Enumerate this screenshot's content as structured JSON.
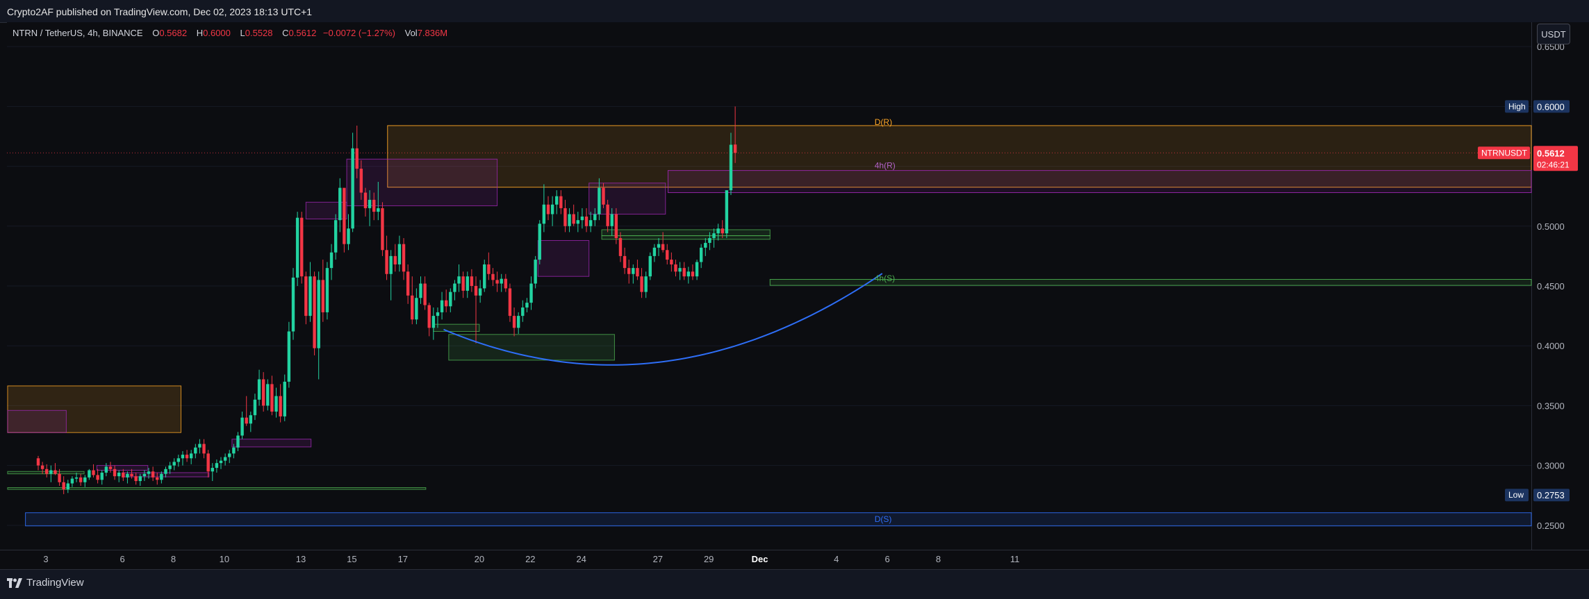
{
  "header": {
    "published_text": "Crypto2AF published on TradingView.com, Dec 02, 2023 18:13 UTC+1"
  },
  "legend": {
    "symbol": "NTRN / TetherUS, 4h, BINANCE",
    "open_label": "O",
    "open": "0.5682",
    "high_label": "H",
    "high": "0.6000",
    "low_label": "L",
    "low": "0.5528",
    "close_label": "C",
    "close": "0.5612",
    "change": "−0.0072 (−1.27%)",
    "vol_label": "Vol",
    "vol": "7.836M"
  },
  "currency_button": "USDT",
  "badges": {
    "high_label": "High",
    "high_value": "0.6000",
    "low_label": "Low",
    "low_value": "0.2753",
    "symbol_label": "NTRNUSDT",
    "last_price": "0.5612",
    "countdown": "02:46:21"
  },
  "zone_labels": {
    "d_resistance": "D(R)",
    "h4_resistance": "4h(R)",
    "h4_support": "4h(S)",
    "d_support": "D(S)"
  },
  "footer": {
    "brand": "TradingView"
  },
  "colors": {
    "up": "#22d3a1",
    "down": "#f23645",
    "curve": "#2e6ef7",
    "price_badge": "#f23645",
    "purple": "#9c27b0",
    "orange": "#ffa726",
    "green": "#4caf50"
  },
  "chart_data": {
    "type": "candlestick",
    "title": "NTRN / TetherUS, 4h, BINANCE",
    "x_ticks": [
      "3",
      "6",
      "8",
      "10",
      "13",
      "15",
      "17",
      "20",
      "22",
      "24",
      "27",
      "29",
      "Dec",
      "4",
      "6",
      "8",
      "11"
    ],
    "x_tick_day_index": [
      0,
      3,
      5,
      7,
      10,
      12,
      14,
      17,
      19,
      21,
      24,
      26,
      28,
      31,
      33,
      35,
      38
    ],
    "y_ticks": [
      "0.6500",
      "0.6000",
      "0.5500",
      "0.5000",
      "0.4500",
      "0.4000",
      "0.3500",
      "0.3000",
      "0.2500"
    ],
    "ylim": [
      0.2296,
      0.6704
    ],
    "high": 0.6,
    "low": 0.2753,
    "last_price": 0.5612,
    "zones": [
      {
        "name": "D(R)",
        "type": "resistance",
        "timeframe": "D",
        "from_day": 13.4,
        "to": "right",
        "top": 0.584,
        "bottom": 0.5325
      },
      {
        "name": "4h(R)",
        "type": "resistance",
        "timeframe": "4h",
        "from_day": 24.4,
        "to": "right",
        "top": 0.5465,
        "bottom": 0.528
      },
      {
        "name": "4h(S)",
        "type": "support",
        "timeframe": "4h",
        "from_day": 28.4,
        "to": "right",
        "top": 0.4555,
        "bottom": 0.4505
      },
      {
        "name": "D(S)",
        "type": "support",
        "timeframe": "D",
        "from_day": -0.8,
        "to": "right",
        "top": 0.2605,
        "bottom": 0.2495
      }
    ],
    "candles_4h": [
      [
        0.306,
        0.308,
        0.296,
        0.3
      ],
      [
        0.3,
        0.303,
        0.293,
        0.297
      ],
      [
        0.297,
        0.301,
        0.29,
        0.293
      ],
      [
        0.293,
        0.3,
        0.286,
        0.296
      ],
      [
        0.296,
        0.302,
        0.292,
        0.293
      ],
      [
        0.293,
        0.297,
        0.283,
        0.286
      ],
      [
        0.286,
        0.291,
        0.276,
        0.28
      ],
      [
        0.28,
        0.288,
        0.277,
        0.285
      ],
      [
        0.285,
        0.291,
        0.282,
        0.289
      ],
      [
        0.289,
        0.294,
        0.286,
        0.29
      ],
      [
        0.29,
        0.293,
        0.283,
        0.286
      ],
      [
        0.286,
        0.292,
        0.282,
        0.29
      ],
      [
        0.29,
        0.297,
        0.288,
        0.296
      ],
      [
        0.296,
        0.301,
        0.29,
        0.292
      ],
      [
        0.292,
        0.297,
        0.285,
        0.288
      ],
      [
        0.288,
        0.296,
        0.284,
        0.294
      ],
      [
        0.294,
        0.302,
        0.291,
        0.299
      ],
      [
        0.299,
        0.303,
        0.294,
        0.297
      ],
      [
        0.297,
        0.3,
        0.288,
        0.291
      ],
      [
        0.291,
        0.296,
        0.286,
        0.294
      ],
      [
        0.294,
        0.297,
        0.287,
        0.29
      ],
      [
        0.29,
        0.295,
        0.285,
        0.293
      ],
      [
        0.293,
        0.297,
        0.289,
        0.291
      ],
      [
        0.291,
        0.294,
        0.284,
        0.287
      ],
      [
        0.287,
        0.293,
        0.283,
        0.291
      ],
      [
        0.291,
        0.296,
        0.287,
        0.293
      ],
      [
        0.293,
        0.298,
        0.289,
        0.295
      ],
      [
        0.295,
        0.299,
        0.287,
        0.29
      ],
      [
        0.29,
        0.294,
        0.284,
        0.288
      ],
      [
        0.288,
        0.295,
        0.285,
        0.293
      ],
      [
        0.293,
        0.299,
        0.29,
        0.297
      ],
      [
        0.297,
        0.303,
        0.293,
        0.3
      ],
      [
        0.3,
        0.306,
        0.296,
        0.303
      ],
      [
        0.303,
        0.309,
        0.299,
        0.306
      ],
      [
        0.306,
        0.312,
        0.3,
        0.309
      ],
      [
        0.309,
        0.313,
        0.303,
        0.306
      ],
      [
        0.306,
        0.313,
        0.301,
        0.31
      ],
      [
        0.31,
        0.318,
        0.306,
        0.315
      ],
      [
        0.315,
        0.322,
        0.31,
        0.318
      ],
      [
        0.318,
        0.322,
        0.306,
        0.31
      ],
      [
        0.31,
        0.313,
        0.29,
        0.295
      ],
      [
        0.295,
        0.302,
        0.287,
        0.298
      ],
      [
        0.298,
        0.305,
        0.294,
        0.302
      ],
      [
        0.302,
        0.307,
        0.297,
        0.304
      ],
      [
        0.304,
        0.31,
        0.3,
        0.307
      ],
      [
        0.307,
        0.313,
        0.302,
        0.31
      ],
      [
        0.31,
        0.318,
        0.306,
        0.315
      ],
      [
        0.315,
        0.328,
        0.312,
        0.325
      ],
      [
        0.325,
        0.345,
        0.322,
        0.34
      ],
      [
        0.34,
        0.358,
        0.333,
        0.335
      ],
      [
        0.335,
        0.345,
        0.328,
        0.342
      ],
      [
        0.342,
        0.36,
        0.338,
        0.355
      ],
      [
        0.355,
        0.38,
        0.35,
        0.372
      ],
      [
        0.372,
        0.378,
        0.345,
        0.35
      ],
      [
        0.35,
        0.372,
        0.346,
        0.368
      ],
      [
        0.368,
        0.375,
        0.342,
        0.345
      ],
      [
        0.345,
        0.365,
        0.34,
        0.358
      ],
      [
        0.358,
        0.368,
        0.336,
        0.341
      ],
      [
        0.341,
        0.376,
        0.337,
        0.37
      ],
      [
        0.37,
        0.42,
        0.365,
        0.412
      ],
      [
        0.412,
        0.465,
        0.405,
        0.457
      ],
      [
        0.457,
        0.512,
        0.45,
        0.507
      ],
      [
        0.507,
        0.512,
        0.452,
        0.458
      ],
      [
        0.458,
        0.462,
        0.418,
        0.425
      ],
      [
        0.425,
        0.47,
        0.42,
        0.458
      ],
      [
        0.458,
        0.462,
        0.392,
        0.398
      ],
      [
        0.398,
        0.462,
        0.372,
        0.455
      ],
      [
        0.455,
        0.472,
        0.42,
        0.428
      ],
      [
        0.428,
        0.47,
        0.422,
        0.465
      ],
      [
        0.465,
        0.485,
        0.455,
        0.478
      ],
      [
        0.478,
        0.51,
        0.472,
        0.505
      ],
      [
        0.505,
        0.54,
        0.495,
        0.532
      ],
      [
        0.532,
        0.52,
        0.478,
        0.485
      ],
      [
        0.485,
        0.51,
        0.48,
        0.498
      ],
      [
        0.498,
        0.578,
        0.495,
        0.565
      ],
      [
        0.565,
        0.584,
        0.54,
        0.548
      ],
      [
        0.548,
        0.555,
        0.522,
        0.528
      ],
      [
        0.528,
        0.532,
        0.508,
        0.515
      ],
      [
        0.515,
        0.53,
        0.5,
        0.522
      ],
      [
        0.522,
        0.528,
        0.505,
        0.512
      ],
      [
        0.512,
        0.537,
        0.505,
        0.515
      ],
      [
        0.515,
        0.52,
        0.475,
        0.48
      ],
      [
        0.48,
        0.492,
        0.455,
        0.46
      ],
      [
        0.46,
        0.48,
        0.438,
        0.475
      ],
      [
        0.475,
        0.485,
        0.462,
        0.468
      ],
      [
        0.468,
        0.492,
        0.462,
        0.485
      ],
      [
        0.485,
        0.49,
        0.455,
        0.462
      ],
      [
        0.462,
        0.468,
        0.435,
        0.442
      ],
      [
        0.442,
        0.458,
        0.418,
        0.422
      ],
      [
        0.422,
        0.448,
        0.418,
        0.44
      ],
      [
        0.44,
        0.458,
        0.435,
        0.452
      ],
      [
        0.452,
        0.458,
        0.43,
        0.434
      ],
      [
        0.434,
        0.436,
        0.408,
        0.415
      ],
      [
        0.415,
        0.432,
        0.405,
        0.425
      ],
      [
        0.425,
        0.432,
        0.415,
        0.428
      ],
      [
        0.428,
        0.445,
        0.422,
        0.438
      ],
      [
        0.438,
        0.447,
        0.428,
        0.433
      ],
      [
        0.433,
        0.448,
        0.428,
        0.445
      ],
      [
        0.445,
        0.455,
        0.438,
        0.452
      ],
      [
        0.452,
        0.468,
        0.445,
        0.458
      ],
      [
        0.458,
        0.462,
        0.44,
        0.446
      ],
      [
        0.446,
        0.462,
        0.44,
        0.458
      ],
      [
        0.458,
        0.464,
        0.445,
        0.45
      ],
      [
        0.45,
        0.458,
        0.402,
        0.442
      ],
      [
        0.442,
        0.455,
        0.436,
        0.448
      ],
      [
        0.448,
        0.472,
        0.445,
        0.468
      ],
      [
        0.468,
        0.478,
        0.455,
        0.46
      ],
      [
        0.46,
        0.465,
        0.45,
        0.455
      ],
      [
        0.455,
        0.462,
        0.445,
        0.452
      ],
      [
        0.452,
        0.46,
        0.445,
        0.456
      ],
      [
        0.456,
        0.46,
        0.445,
        0.448
      ],
      [
        0.448,
        0.452,
        0.42,
        0.425
      ],
      [
        0.425,
        0.432,
        0.408,
        0.415
      ],
      [
        0.415,
        0.428,
        0.41,
        0.425
      ],
      [
        0.425,
        0.438,
        0.42,
        0.432
      ],
      [
        0.432,
        0.44,
        0.428,
        0.436
      ],
      [
        0.436,
        0.458,
        0.43,
        0.452
      ],
      [
        0.452,
        0.475,
        0.448,
        0.472
      ],
      [
        0.472,
        0.505,
        0.468,
        0.502
      ],
      [
        0.502,
        0.535,
        0.495,
        0.518
      ],
      [
        0.518,
        0.525,
        0.505,
        0.51
      ],
      [
        0.51,
        0.525,
        0.5,
        0.518
      ],
      [
        0.518,
        0.53,
        0.51,
        0.525
      ],
      [
        0.525,
        0.53,
        0.51,
        0.515
      ],
      [
        0.515,
        0.522,
        0.495,
        0.5
      ],
      [
        0.5,
        0.515,
        0.495,
        0.51
      ],
      [
        0.51,
        0.518,
        0.5,
        0.502
      ],
      [
        0.502,
        0.512,
        0.495,
        0.505
      ],
      [
        0.505,
        0.515,
        0.498,
        0.508
      ],
      [
        0.508,
        0.515,
        0.495,
        0.5
      ],
      [
        0.5,
        0.512,
        0.495,
        0.505
      ],
      [
        0.505,
        0.515,
        0.5,
        0.51
      ],
      [
        0.51,
        0.54,
        0.505,
        0.532
      ],
      [
        0.532,
        0.536,
        0.515,
        0.518
      ],
      [
        0.518,
        0.522,
        0.495,
        0.5
      ],
      [
        0.5,
        0.515,
        0.492,
        0.51
      ],
      [
        0.51,
        0.515,
        0.485,
        0.49
      ],
      [
        0.49,
        0.495,
        0.47,
        0.475
      ],
      [
        0.475,
        0.482,
        0.46,
        0.465
      ],
      [
        0.465,
        0.472,
        0.452,
        0.46
      ],
      [
        0.46,
        0.468,
        0.452,
        0.465
      ],
      [
        0.465,
        0.472,
        0.455,
        0.458
      ],
      [
        0.458,
        0.465,
        0.44,
        0.445
      ],
      [
        0.445,
        0.462,
        0.44,
        0.458
      ],
      [
        0.458,
        0.478,
        0.455,
        0.475
      ],
      [
        0.475,
        0.485,
        0.47,
        0.482
      ],
      [
        0.482,
        0.49,
        0.475,
        0.485
      ],
      [
        0.485,
        0.495,
        0.478,
        0.48
      ],
      [
        0.48,
        0.485,
        0.468,
        0.472
      ],
      [
        0.472,
        0.478,
        0.462,
        0.468
      ],
      [
        0.468,
        0.472,
        0.458,
        0.462
      ],
      [
        0.462,
        0.47,
        0.455,
        0.465
      ],
      [
        0.465,
        0.47,
        0.455,
        0.458
      ],
      [
        0.458,
        0.466,
        0.452,
        0.462
      ],
      [
        0.462,
        0.468,
        0.455,
        0.458
      ],
      [
        0.458,
        0.472,
        0.455,
        0.47
      ],
      [
        0.47,
        0.485,
        0.465,
        0.482
      ],
      [
        0.482,
        0.49,
        0.475,
        0.486
      ],
      [
        0.486,
        0.495,
        0.48,
        0.49
      ],
      [
        0.49,
        0.498,
        0.482,
        0.494
      ],
      [
        0.494,
        0.502,
        0.488,
        0.498
      ],
      [
        0.498,
        0.505,
        0.49,
        0.494
      ],
      [
        0.494,
        0.52,
        0.49,
        0.53
      ],
      [
        0.53,
        0.578,
        0.526,
        0.568
      ],
      [
        0.5682,
        0.6,
        0.5528,
        0.5612
      ]
    ]
  }
}
